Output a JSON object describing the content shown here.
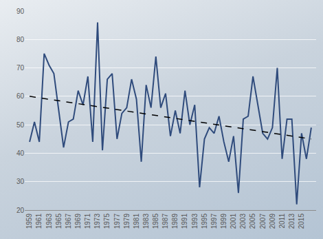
{
  "chart_data": {
    "type": "line",
    "x": [
      1959,
      1960,
      1961,
      1962,
      1963,
      1964,
      1965,
      1966,
      1967,
      1968,
      1969,
      1970,
      1971,
      1972,
      1973,
      1974,
      1975,
      1976,
      1977,
      1978,
      1979,
      1980,
      1981,
      1982,
      1983,
      1984,
      1985,
      1986,
      1987,
      1988,
      1989,
      1990,
      1991,
      1992,
      1993,
      1994,
      1995,
      1996,
      1997,
      1998,
      1999,
      2000,
      2001,
      2002,
      2003,
      2004,
      2005,
      2006,
      2007,
      2008,
      2009,
      2010,
      2011,
      2012,
      2013,
      2014,
      2015,
      2016,
      2017
    ],
    "series": [
      {
        "color": "#2f4b7c",
        "line_style": "solid",
        "values": [
          44,
          51,
          44,
          75,
          71,
          68,
          55,
          42,
          51,
          52,
          62,
          57,
          67,
          44,
          86,
          41,
          66,
          68,
          45,
          54,
          56,
          66,
          59,
          37,
          64,
          56,
          74,
          56,
          61,
          46,
          55,
          47,
          62,
          50,
          57,
          28,
          45,
          49,
          47,
          53,
          44,
          37,
          46,
          26,
          52,
          53,
          67,
          57,
          47,
          45,
          49,
          70,
          38,
          52,
          52,
          22,
          47,
          38,
          49
        ]
      }
    ],
    "trend": {
      "x": [
        1959,
        2017
      ],
      "values": [
        60,
        45
      ],
      "color": "#000000",
      "line_style": "dashed"
    },
    "xlim": [
      1958,
      2018
    ],
    "xticks": [
      1959,
      1961,
      1963,
      1965,
      1967,
      1969,
      1971,
      1973,
      1975,
      1977,
      1979,
      1981,
      1983,
      1985,
      1987,
      1989,
      1991,
      1993,
      1995,
      1997,
      1999,
      2001,
      2003,
      2005,
      2007,
      2009,
      2011,
      2013,
      2015
    ],
    "ylim": [
      20,
      90
    ],
    "yticks": [
      20,
      30,
      40,
      50,
      60,
      70,
      80,
      90
    ],
    "grid": true
  }
}
